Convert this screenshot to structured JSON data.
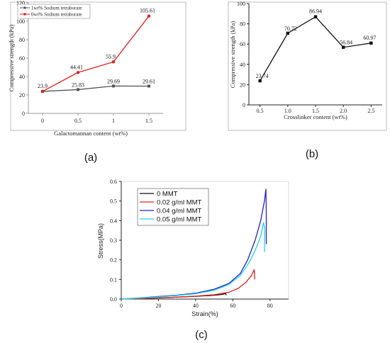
{
  "chart_data": [
    {
      "type": "line",
      "xlabel": "Galactomannan content (wt%)",
      "ylabel": "Compressive strength (kPa)",
      "xlim": [
        -0.2,
        1.7
      ],
      "ylim": [
        0,
        120
      ],
      "x_ticks": [
        "0",
        "0.5",
        "1",
        "1.5"
      ],
      "y_ticks": [
        "0",
        "20",
        "40",
        "60",
        "80",
        "100",
        "120"
      ],
      "x": [
        0,
        0.5,
        1,
        1.5
      ],
      "series": [
        {
          "name": "1wt% Sodium tetraborate",
          "values": [
            23.9,
            25.83,
            29.69,
            29.61
          ],
          "color": "#555555",
          "marker": "square",
          "labels": [
            "23.9",
            "25.83",
            "29.69",
            "29.61"
          ]
        },
        {
          "name": "0wt% Sodium tetraborate",
          "values": [
            23.9,
            44.41,
            55.9,
            105.61
          ],
          "color": "#e02020",
          "marker": "circle",
          "labels": [
            "",
            "44.41",
            "55.9",
            "105.61"
          ]
        }
      ],
      "legend": "top-left",
      "panel_label": "(a)"
    },
    {
      "type": "line",
      "xlabel": "Crosslinker content (wt%)",
      "ylabel": "Compressive strength (kPa)",
      "xlim": [
        0.3,
        2.7
      ],
      "ylim": [
        0,
        100
      ],
      "x_ticks": [
        "0.5",
        "1.0",
        "1.5",
        "2.0",
        "2.5"
      ],
      "y_ticks": [
        "0",
        "20",
        "40",
        "60",
        "80",
        "100"
      ],
      "x": [
        0.5,
        1.0,
        1.5,
        2.0,
        2.5
      ],
      "series": [
        {
          "values": [
            23.74,
            70.72,
            86.94,
            56.84,
            60.97
          ],
          "color": "#111111",
          "marker": "square",
          "labels": [
            "23.74",
            "70.72",
            "86.94",
            "56.84",
            "60.97"
          ]
        }
      ],
      "panel_label": "(b)"
    },
    {
      "type": "line",
      "xlabel": "Strain(%)",
      "ylabel": "Stress(MPa)",
      "xlim": [
        0,
        90
      ],
      "ylim": [
        0,
        0.6
      ],
      "x_ticks": [
        "0",
        "20",
        "40",
        "60",
        "80"
      ],
      "y_ticks": [
        "0.0",
        "0.1",
        "0.2",
        "0.3",
        "0.4",
        "0.5",
        "0.6"
      ],
      "series": [
        {
          "name": "0  MMT",
          "color": "#111111",
          "points": [
            [
              0,
              0
            ],
            [
              10,
              0.003
            ],
            [
              20,
              0.006
            ],
            [
              30,
              0.01
            ],
            [
              40,
              0.014
            ],
            [
              48,
              0.018
            ],
            [
              53,
              0.022
            ],
            [
              55.5,
              0.026
            ],
            [
              56,
              0.03
            ],
            [
              56.5,
              0.02
            ]
          ]
        },
        {
          "name": "0.02 g/ml  MMT",
          "color": "#e02020",
          "points": [
            [
              0,
              0
            ],
            [
              10,
              0.003
            ],
            [
              20,
              0.006
            ],
            [
              30,
              0.01
            ],
            [
              40,
              0.015
            ],
            [
              50,
              0.022
            ],
            [
              58,
              0.035
            ],
            [
              63,
              0.055
            ],
            [
              67,
              0.085
            ],
            [
              70,
              0.12
            ],
            [
              71.5,
              0.15
            ],
            [
              71.8,
              0.1
            ]
          ]
        },
        {
          "name": "0.04 g/ml  MMT",
          "color": "#2222cc",
          "points": [
            [
              0,
              0
            ],
            [
              10,
              0.006
            ],
            [
              20,
              0.013
            ],
            [
              30,
              0.02
            ],
            [
              40,
              0.03
            ],
            [
              50,
              0.05
            ],
            [
              58,
              0.08
            ],
            [
              64,
              0.13
            ],
            [
              68,
              0.2
            ],
            [
              72,
              0.3
            ],
            [
              75,
              0.4
            ],
            [
              77,
              0.5
            ],
            [
              77.8,
              0.56
            ],
            [
              78,
              0.44
            ],
            [
              78,
              0.28
            ]
          ]
        },
        {
          "name": "0.05 g/ml  MMT",
          "color": "#22d4e8",
          "points": [
            [
              0,
              0
            ],
            [
              10,
              0.005
            ],
            [
              20,
              0.011
            ],
            [
              30,
              0.018
            ],
            [
              40,
              0.027
            ],
            [
              50,
              0.045
            ],
            [
              58,
              0.075
            ],
            [
              64,
              0.12
            ],
            [
              69,
              0.19
            ],
            [
              72.5,
              0.26
            ],
            [
              75,
              0.32
            ],
            [
              76.5,
              0.39
            ],
            [
              77.2,
              0.36
            ],
            [
              77,
              0.24
            ]
          ]
        }
      ],
      "legend": "top-left",
      "panel_label": "(c)"
    }
  ]
}
